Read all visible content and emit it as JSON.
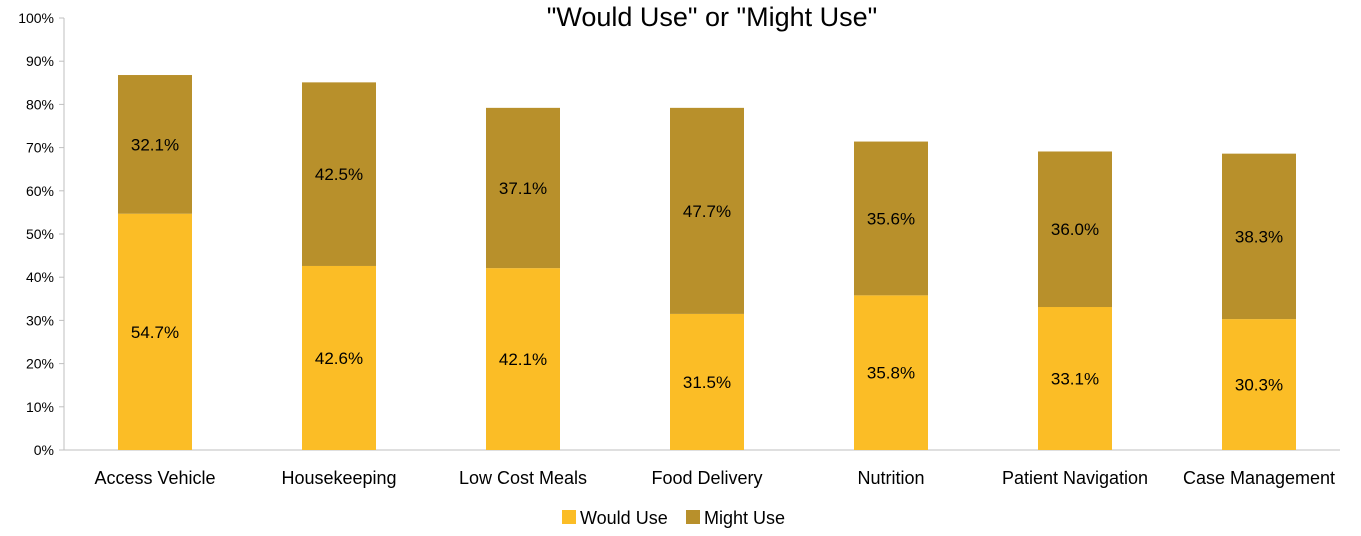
{
  "chart_data": {
    "type": "bar",
    "stacked": true,
    "title": "\"Would Use\" or \"Might Use\"",
    "categories": [
      "Access Vehicle",
      "Housekeeping",
      "Low Cost Meals",
      "Food Delivery",
      "Nutrition",
      "Patient Navigation",
      "Case Management"
    ],
    "series": [
      {
        "name": "Would Use",
        "color": "#FBBD26",
        "values": [
          54.7,
          42.6,
          42.1,
          31.5,
          35.8,
          33.1,
          30.3
        ],
        "labels": [
          "54.7%",
          "42.6%",
          "42.1%",
          "31.5%",
          "35.8%",
          "33.1%",
          "30.3%"
        ]
      },
      {
        "name": "Might Use",
        "color": "#B8902B",
        "values": [
          32.1,
          42.5,
          37.1,
          47.7,
          35.6,
          36.0,
          38.3
        ],
        "labels": [
          "32.1%",
          "42.5%",
          "37.1%",
          "47.7%",
          "35.6%",
          "36.0%",
          "38.3%"
        ]
      }
    ],
    "ylim": [
      0,
      100
    ],
    "yticks": [
      "0%",
      "10%",
      "20%",
      "30%",
      "40%",
      "50%",
      "60%",
      "70%",
      "80%",
      "90%",
      "100%"
    ],
    "xlabel": "",
    "ylabel": "",
    "grid": false,
    "legend_position": "bottom"
  }
}
